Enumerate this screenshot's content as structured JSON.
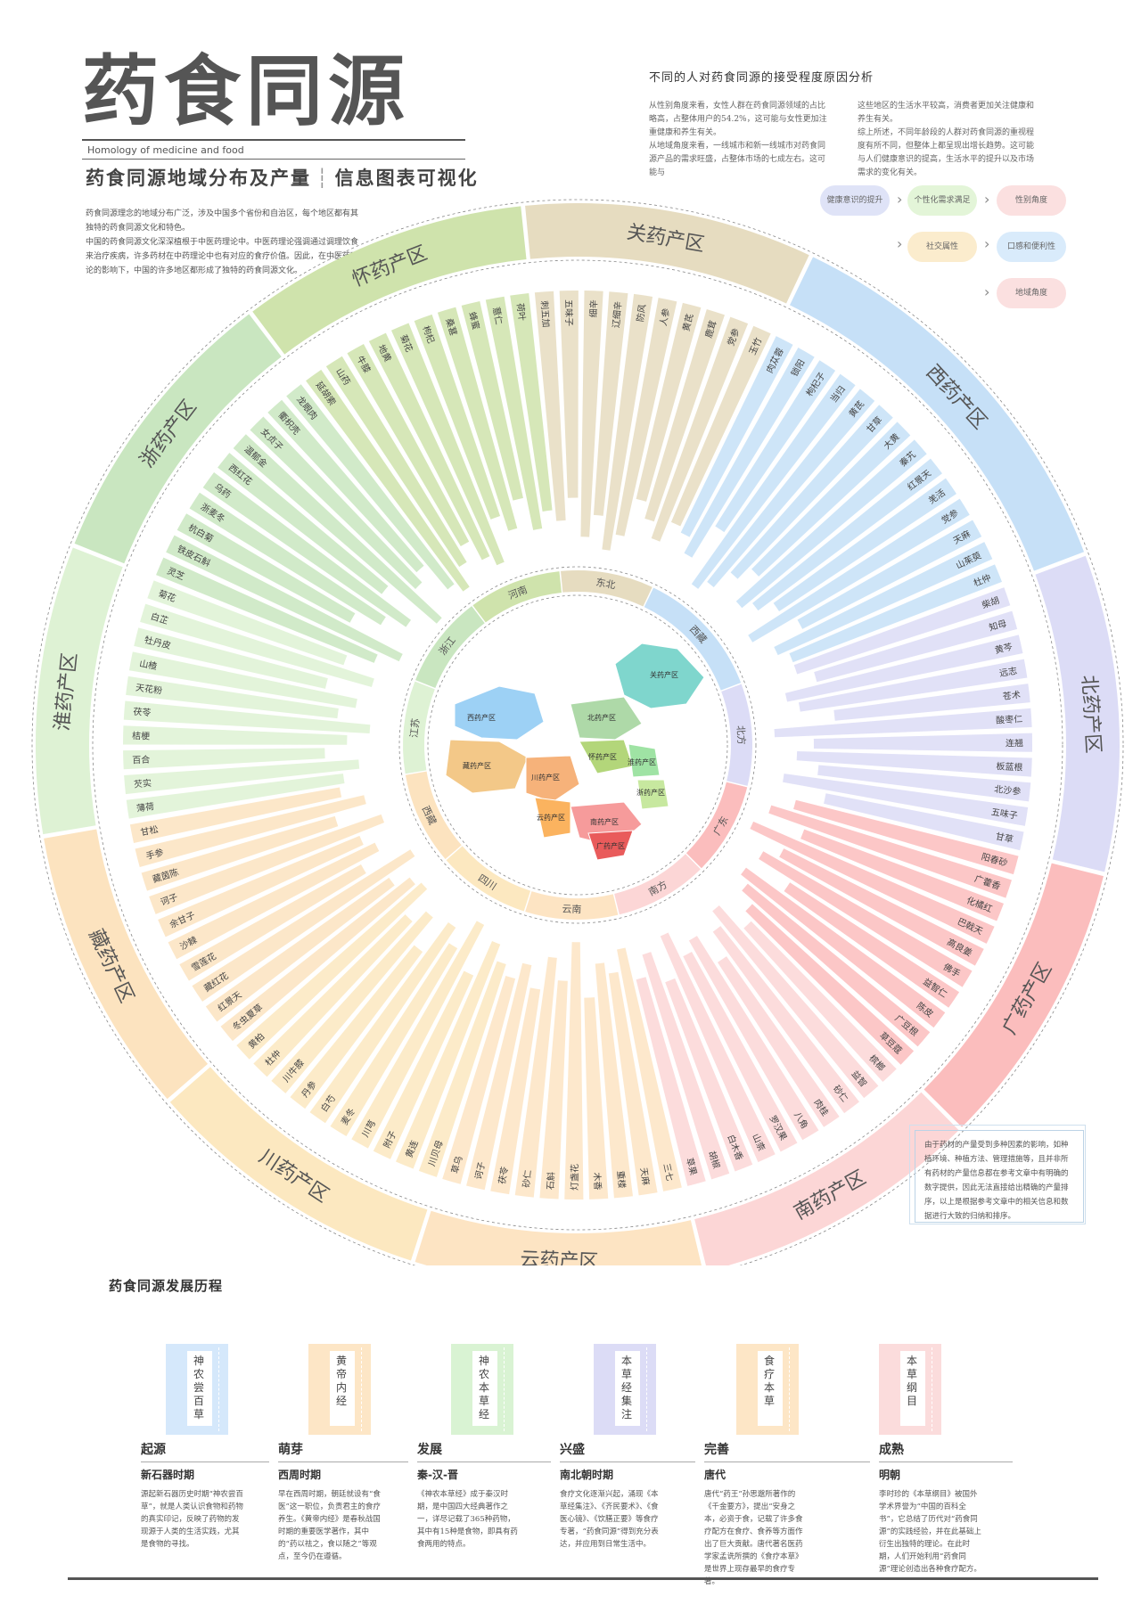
{
  "header": {
    "title": "药食同源",
    "subtitle_en": "Homology of medicine and food",
    "heading_left": "药食同源地域分布及产量",
    "heading_right": "信息图表可视化",
    "intro": [
      "药食同源理念的地域分布广泛，涉及中国多个省份和自治区，每个地区都有其独特的药食同源文化和特色。",
      "中国的药食同源文化深深植根于中医药理论中。中医药理论强调通过调理饮食来治疗疾病，许多药材在中药理论中也有对应的食疗价值。因此，在中医药理论的影响下，中国的许多地区都形成了独特的药食同源文化。"
    ]
  },
  "analysis": {
    "title": "不同的人对药食同源的接受程度原因分析",
    "col1": [
      "从性别角度来看，女性人群在药食同源领域的占比略高，占整体用户的54.2%，这可能与女性更加注重健康和养生有关。",
      "从地域角度来看，一线城市和新一线城市对药食同源产品的需求旺盛，占整体市场的七成左右。这可能与"
    ],
    "col2": [
      "这些地区的生活水平较高，消费者更加关注健康和养生有关。",
      "综上所述，不同年龄段的人群对药食同源的重视程度有所不同，但整体上都呈现出增长趋势。这可能与人们健康意识的提高，生活水平的提升以及市场需求的变化有关。"
    ],
    "pills": [
      {
        "label": "健康意识的提升",
        "color": "#dfe3f7"
      },
      {
        "label": "个性化需求满足",
        "color": "#e3f5d8"
      },
      {
        "label": "性别角度",
        "color": "#fbe0e0"
      },
      {
        "label": "社交属性",
        "color": "#fbeccd"
      },
      {
        "label": "口感和便利性",
        "color": "#d9ebfb"
      },
      {
        "label": "地域角度",
        "color": "#fbe0e0"
      }
    ]
  },
  "regions": [
    {
      "name": "浙药产区",
      "short": "浙江",
      "color": "#c9e6c0",
      "herbs": [
        "灵芝",
        "铁皮石斛",
        "杭白菊",
        "浙麦冬",
        "乌药",
        "西红花",
        "温郁金",
        "女贞子",
        "衢枳壳",
        "龙眼肉"
      ],
      "values": [
        62,
        70,
        48,
        58,
        66,
        52,
        74,
        60,
        56,
        68
      ]
    },
    {
      "name": "怀药产区",
      "short": "河南",
      "color": "#cfe3ac",
      "herbs": [
        "延胡索",
        "山药",
        "牛膝",
        "地黄",
        "菊花",
        "枸杞",
        "桑葚",
        "蜂蜜",
        "薏仁",
        "荷叶"
      ],
      "values": [
        72,
        64,
        58,
        66,
        70,
        54,
        60,
        50,
        62,
        56
      ]
    },
    {
      "name": "关药产区",
      "short": "东北",
      "color": "#e6dcc0",
      "herbs": [
        "刺五加",
        "五味子",
        "细辛",
        "辽细辛",
        "防风",
        "人参",
        "黄芪",
        "鹿茸",
        "党参",
        "玉竹"
      ],
      "values": [
        60,
        52,
        66,
        58,
        70,
        64,
        50,
        56,
        62,
        54
      ]
    },
    {
      "name": "西药产区",
      "short": "西藏",
      "color": "#c6e0f7",
      "herbs": [
        "肉苁蓉",
        "锁阳",
        "枸杞子",
        "当归",
        "黄芪",
        "甘草",
        "大黄",
        "秦艽",
        "红景天",
        "羌活",
        "党参",
        "天麻",
        "山茱萸",
        "杜仲"
      ],
      "values": [
        56,
        62,
        48,
        70,
        66,
        58,
        52,
        64,
        60,
        54,
        68,
        50,
        62,
        58
      ]
    },
    {
      "name": "北药产区",
      "short": "北方",
      "color": "#dcdcf6",
      "herbs": [
        "柴胡",
        "知母",
        "黄芩",
        "远志",
        "苍术",
        "酸枣仁",
        "连翘",
        "板蓝根",
        "北沙参",
        "五味子",
        "甘草"
      ],
      "values": [
        58,
        52,
        64,
        60,
        48,
        70,
        56,
        62,
        54,
        66,
        50
      ]
    },
    {
      "name": "广药产区",
      "short": "广东",
      "color": "#fbbdbd",
      "herbs": [
        "阳春砂",
        "广藿香",
        "化橘红",
        "巴戟天",
        "高良姜",
        "佛手",
        "益智仁",
        "陈皮",
        "广豆根",
        "草豆蔻"
      ],
      "values": [
        60,
        68,
        54,
        72,
        58,
        64,
        50,
        66,
        62,
        56
      ]
    },
    {
      "name": "南药产区",
      "short": "南方",
      "color": "#fcd6d6",
      "herbs": [
        "槟榔",
        "益智",
        "砂仁",
        "肉桂",
        "八角",
        "罗汉果",
        "山柰",
        "白木香",
        "胡椒",
        "草果"
      ],
      "values": [
        52,
        64,
        58,
        48,
        60,
        56,
        66,
        50,
        62,
        54
      ]
    },
    {
      "name": "云药产区",
      "short": "云南",
      "color": "#fde4c3",
      "herbs": [
        "三七",
        "天麻",
        "重楼",
        "木香",
        "灯盏花",
        "石斛",
        "砂仁",
        "茯苓",
        "诃子",
        "草乌"
      ],
      "values": [
        66,
        58,
        62,
        50,
        70,
        56,
        64,
        52,
        60,
        54
      ]
    },
    {
      "name": "川药产区",
      "short": "四川",
      "color": "#fce8c0",
      "herbs": [
        "川贝母",
        "黄连",
        "附子",
        "川芎",
        "麦冬",
        "白芍",
        "丹参",
        "川牛膝",
        "杜仲",
        "黄柏"
      ],
      "values": [
        58,
        64,
        50,
        68,
        56,
        62,
        48,
        60,
        54,
        66
      ]
    },
    {
      "name": "藏药产区",
      "short": "西藏",
      "color": "#fce3bf",
      "herbs": [
        "冬虫夏草",
        "红景天",
        "藏红花",
        "雪莲花",
        "沙棘",
        "余甘子",
        "诃子",
        "藏茵陈",
        "手参",
        "甘松"
      ],
      "values": [
        64,
        58,
        70,
        52,
        60,
        56,
        66,
        50,
        62,
        54
      ]
    },
    {
      "name": "淮药产区",
      "short": "江苏",
      "color": "#def2d4",
      "herbs": [
        "薄荷",
        "芡实",
        "百合",
        "桔梗",
        "茯苓",
        "天花粉",
        "山楂",
        "牡丹皮",
        "白芷",
        "菊花"
      ],
      "values": [
        56,
        62,
        50,
        58,
        66,
        54,
        60,
        48,
        64,
        52
      ]
    }
  ],
  "map": {
    "labels": [
      "西药产区",
      "藏药产区",
      "关药产区",
      "北药产区",
      "川药产区",
      "怀药产区",
      "淮药产区",
      "浙药产区",
      "南药产区",
      "云药产区",
      "广药产区"
    ]
  },
  "note": "由于药材的产量受到多种因素的影响，如种植环境、种植方法、管理措施等，且并非所有药材的产量信息都在参考文章中有明确的数字提供，因此无法直接给出精确的产量排序，以上是根据参考文章中的相关信息和数据进行大致的归纳和排序。",
  "timeline": {
    "title": "药食同源发展历程",
    "cards": [
      {
        "label": "神农尝百草",
        "color": "#d5e8fb"
      },
      {
        "label": "黄帝内经",
        "color": "#fde6c6"
      },
      {
        "label": "神农本草经",
        "color": "#d9f3d3"
      },
      {
        "label": "本草经集注",
        "color": "#dcdcf6"
      },
      {
        "label": "食疗本草",
        "color": "#fde6c6"
      },
      {
        "label": "本草纲目",
        "color": "#fbdcdc"
      }
    ],
    "stages": [
      {
        "stage": "起源",
        "period": "新石器时期",
        "desc": "源起新石器历史时期“神农尝百草”，就是人类认识食物和药物的真实印记，反映了药物的发现源于人类的生活实践，尤其是食物的寻找。"
      },
      {
        "stage": "萌芽",
        "period": "西周时期",
        "desc": "早在西周时期，朝廷就设有“食医”这一职位，负责君主的食疗养生。《黄帝内经》是春秋战国时期的重要医学著作，其中的“药以祛之，食以随之”等观点，至今仍在遵循。"
      },
      {
        "stage": "发展",
        "period": "秦-汉-晋",
        "desc": "《神农本草经》成于秦汉时期，是中国四大经典著作之一，详尽记载了365种药物，其中有15种是食物，即具有药食两用的特点。"
      },
      {
        "stage": "兴盛",
        "period": "南北朝时期",
        "desc": "食疗文化逐渐兴起，涌现《本草经集注》、《齐民要术》、《食医心镜》、《饮膳正要》等食疗专著，“药食同源”得到充分表达，并应用到日常生活中。"
      },
      {
        "stage": "完善",
        "period": "唐代",
        "desc": "唐代“药王”孙思邈所著作的《千金要方》，提出“安身之本，必资于食，记载了许多食疗配方在食疗、食养等方面作出了巨大贡献。唐代著名医药学家孟诜所撰的《食疗本草》是世界上现存最早的食疗专著。"
      },
      {
        "stage": "成熟",
        "period": "明朝",
        "desc": "李时珍的《本草纲目》被国外学术界誉为“中国的百科全书”，它总结了历代对“药食同源”的实践经验，并在此基础上衍生出独特的理论。在此时期，人们开始利用“药食同源”理论创造出各种食疗配方。"
      }
    ]
  }
}
